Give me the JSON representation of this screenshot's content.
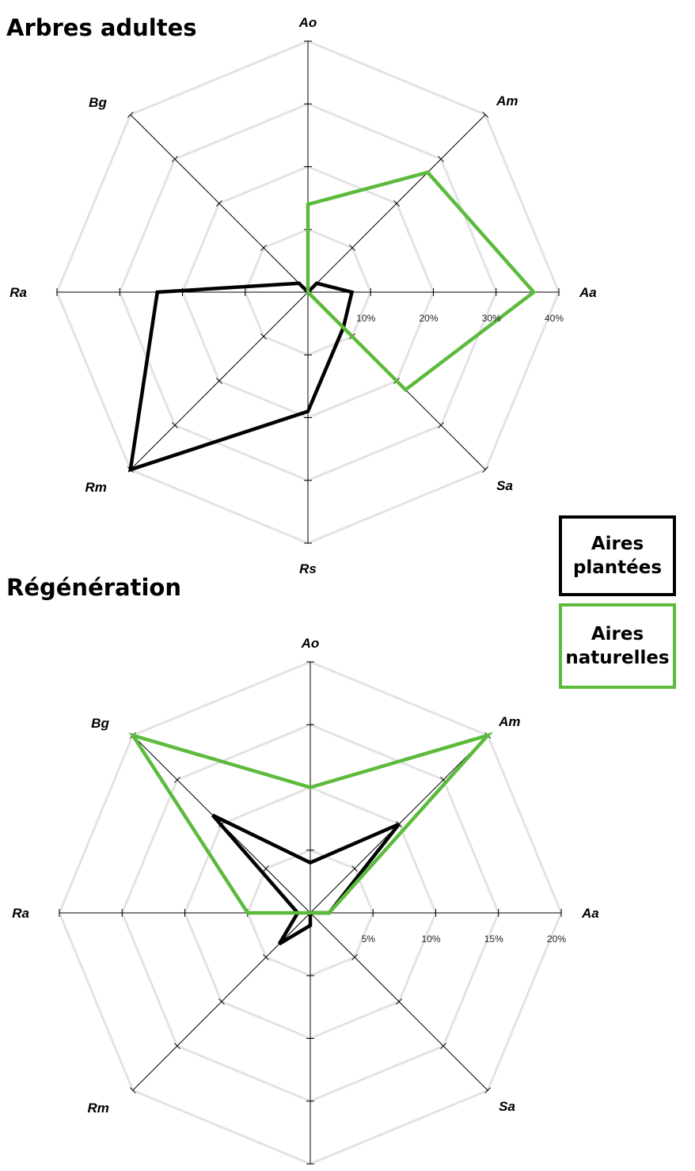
{
  "chart_data": [
    {
      "type": "radar",
      "title": "Arbres adultes",
      "axes": [
        "Ao",
        "Am",
        "Aa",
        "Sa",
        "Rs",
        "Rm",
        "Ra",
        "Bg"
      ],
      "rmax": 40,
      "ticks": [
        10,
        20,
        30,
        40
      ],
      "tick_labels": [
        "10%",
        "20%",
        "30%",
        "40%"
      ],
      "series": [
        {
          "name": "Aires plantées",
          "color": "#000000",
          "values": [
            0,
            2,
            7,
            8,
            19,
            40,
            24,
            2
          ]
        },
        {
          "name": "Aires naturelles",
          "color": "#5cba3c",
          "values": [
            14,
            27,
            36,
            22,
            0,
            0,
            0,
            0
          ]
        }
      ]
    },
    {
      "type": "radar",
      "title": "Régénération",
      "axes": [
        "Ao",
        "Am",
        "Aa",
        "Sa",
        "Rs",
        "Rm",
        "Ra",
        "Bg"
      ],
      "rmax": 20,
      "ticks": [
        5,
        10,
        15,
        20
      ],
      "tick_labels": [
        "5%",
        "10%",
        "15%",
        "20%"
      ],
      "series": [
        {
          "name": "Aires plantées",
          "color": "#000000",
          "values": [
            4,
            10,
            1.5,
            0,
            1,
            3.5,
            1,
            11
          ]
        },
        {
          "name": "Aires naturelles",
          "color": "#5cba3c",
          "values": [
            10,
            20,
            1.5,
            0,
            0,
            0,
            5,
            20
          ]
        }
      ]
    }
  ],
  "legend": {
    "planted": {
      "line1": "Aires",
      "line2": "plantées",
      "color": "#000000"
    },
    "natural": {
      "line1": "Aires",
      "line2": "naturelles",
      "color": "#5cba3c"
    }
  },
  "colors": {
    "grid": "#e3e3e3",
    "axis": "#000000"
  }
}
